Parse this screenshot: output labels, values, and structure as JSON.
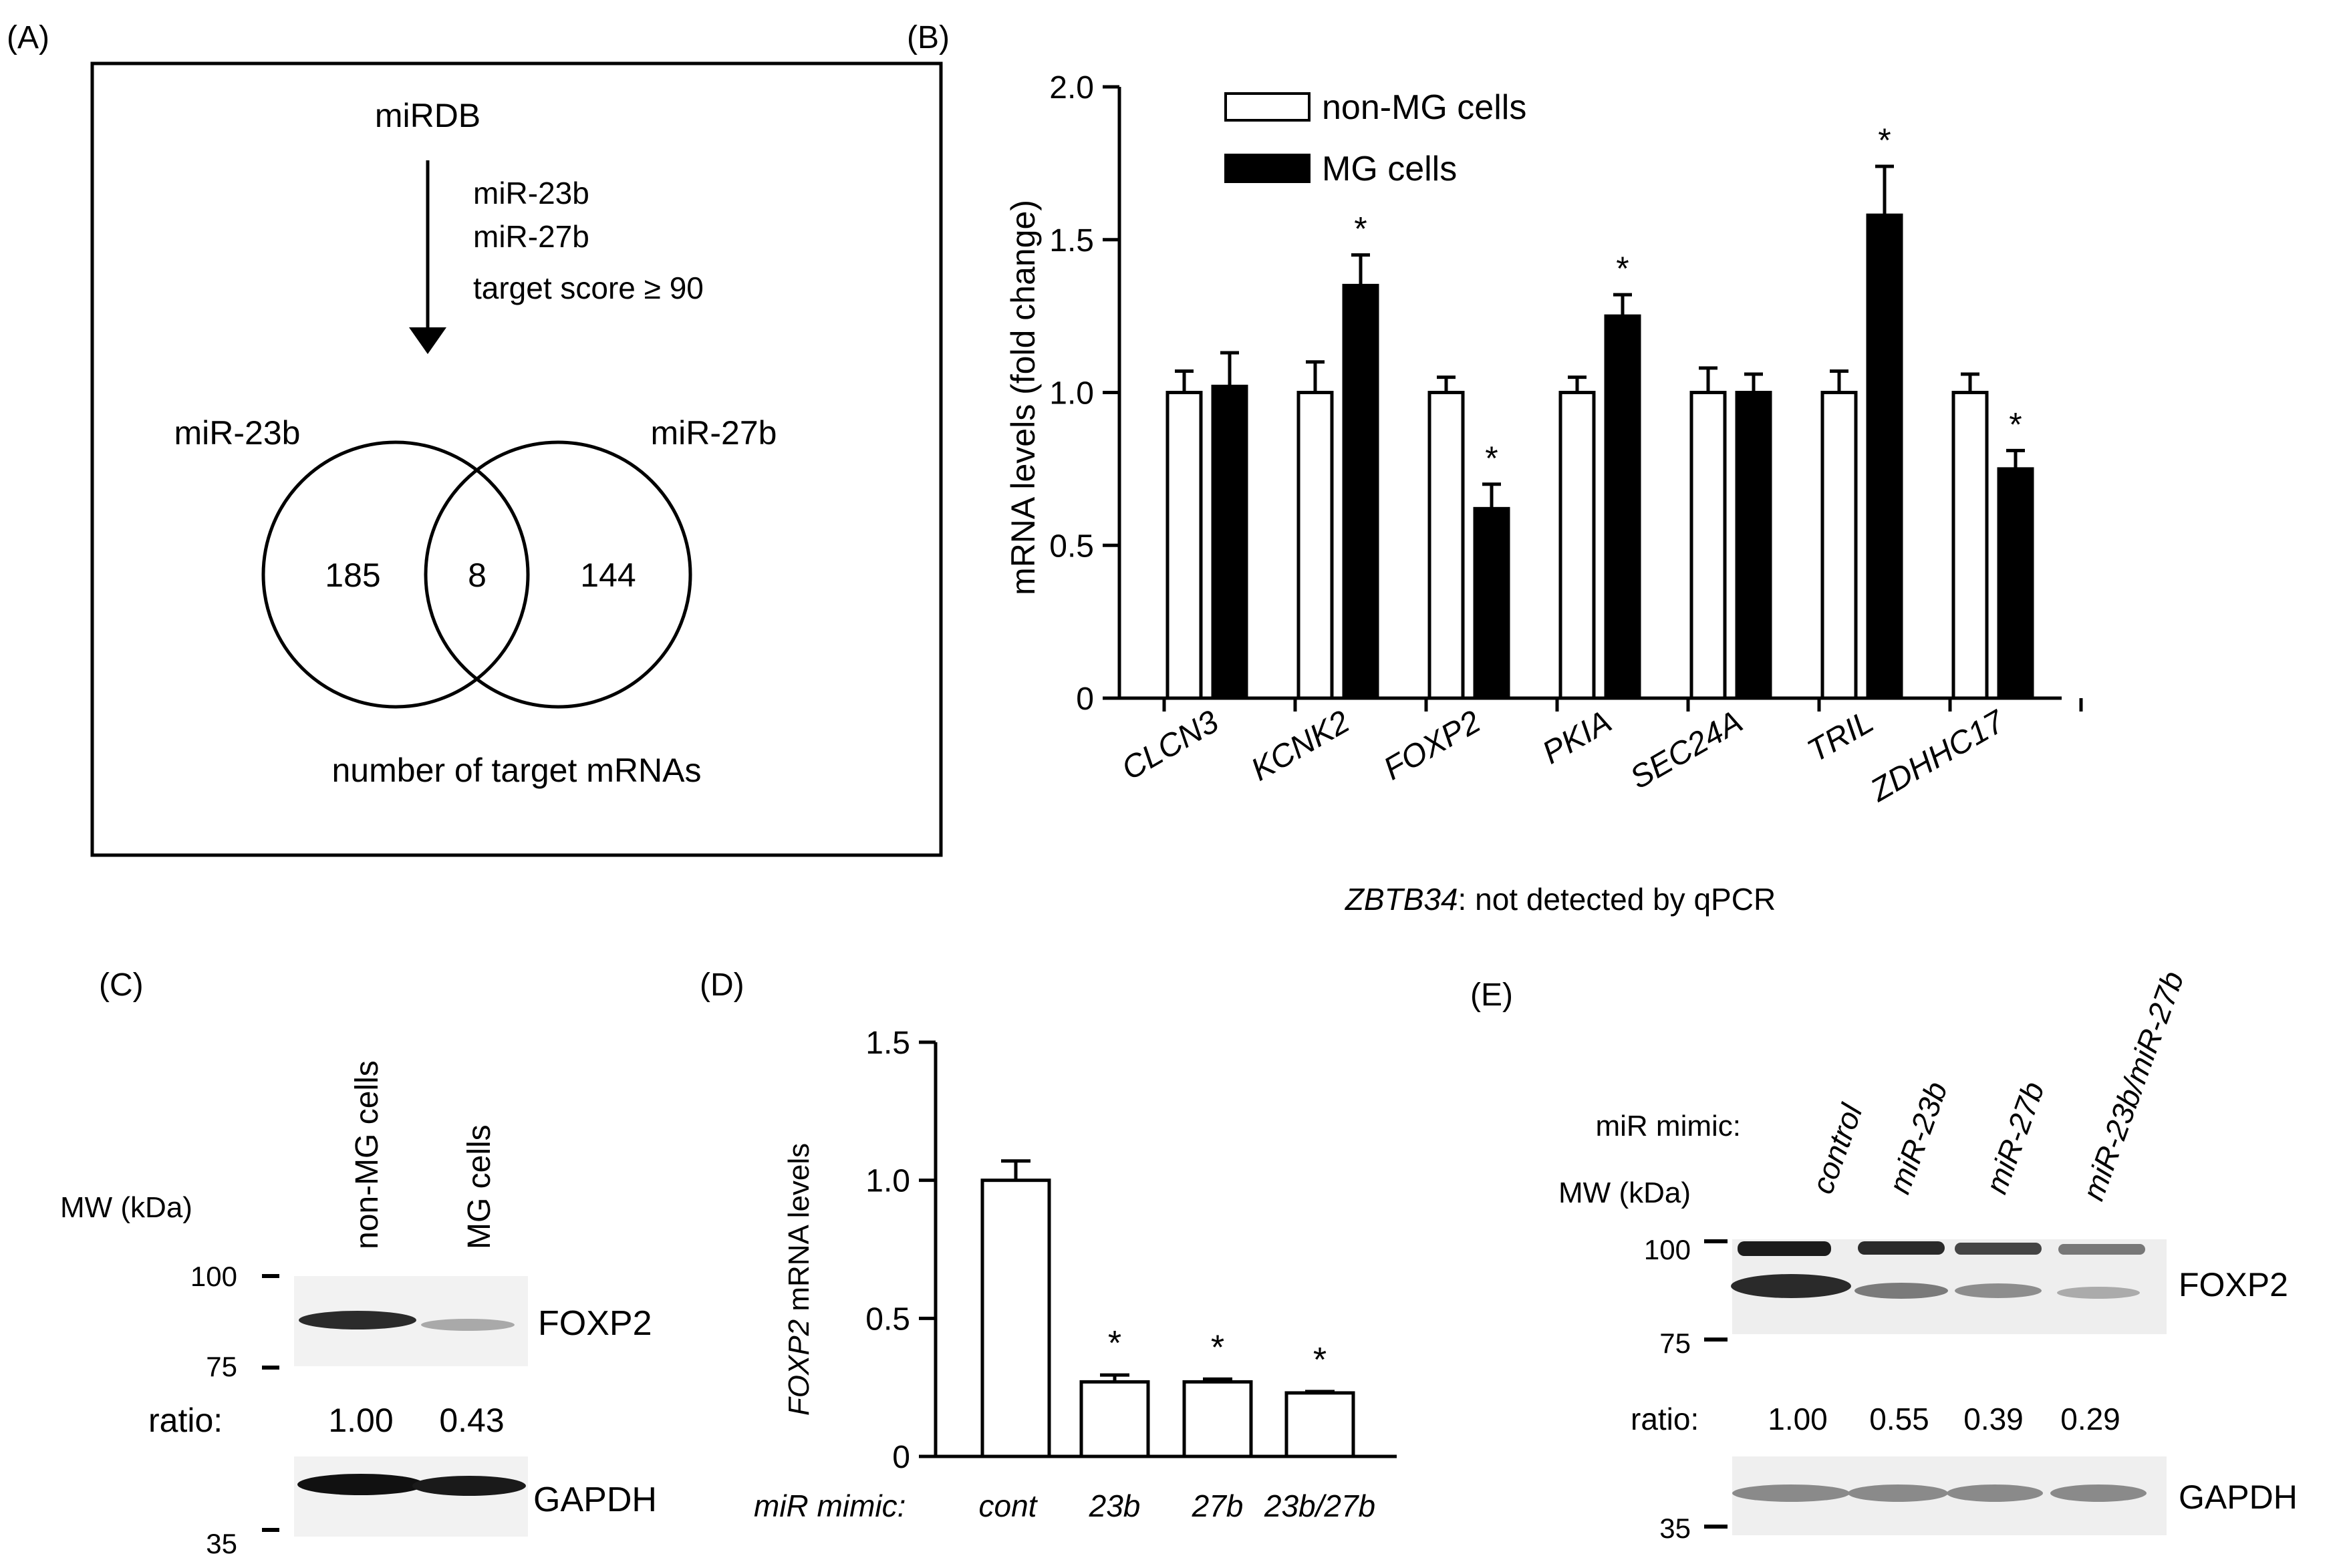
{
  "panel_a": {
    "label": "(A)",
    "source": "miRDB",
    "criteria": [
      "miR-23b",
      "miR-27b",
      "target score ≥ 90"
    ],
    "circle_left_label": "miR-23b",
    "circle_right_label": "miR-27b",
    "count_left": "185",
    "count_overlap": "8",
    "count_right": "144",
    "caption": "number of target mRNAs"
  },
  "panel_b": {
    "label": "(B)",
    "legend": [
      "non-MG cells",
      "MG cells"
    ],
    "footnote_gene": "ZBTB34",
    "footnote_text": ": not detected by qPCR"
  },
  "panel_c": {
    "label": "(C)",
    "lanes": [
      "non-MG cells",
      "MG cells"
    ],
    "mw_label": "MW (kDa)",
    "mw_marks": [
      "100",
      "75",
      "35"
    ],
    "band_top": "FOXP2",
    "band_bottom": "GAPDH",
    "ratio_label": "ratio:",
    "ratios": [
      "1.00",
      "0.43"
    ]
  },
  "panel_d": {
    "label": "(D)",
    "mimic_label": "miR mimic:"
  },
  "panel_e": {
    "label": "(E)",
    "mimic_label": "miR mimic:",
    "lanes": [
      "control",
      "miR-23b",
      "miR-27b",
      "miR-23b/miR-27b"
    ],
    "mw_label": "MW (kDa)",
    "mw_marks": [
      "100",
      "75",
      "35"
    ],
    "band_top": "FOXP2",
    "band_bottom": "GAPDH",
    "ratio_label": "ratio:",
    "ratios": [
      "1.00",
      "0.55",
      "0.39",
      "0.29"
    ]
  },
  "chart_data": [
    {
      "type": "bar",
      "panel": "B",
      "ylabel": "mRNA levels (fold change)",
      "ylim": [
        0,
        2.0
      ],
      "yticks": [
        "0",
        "0.5",
        "1.0",
        "1.5",
        "2.0"
      ],
      "categories": [
        "CLCN3",
        "KCNK2",
        "FOXP2",
        "PKIA",
        "SEC24A",
        "TRIL",
        "ZDHHC17"
      ],
      "series": [
        {
          "name": "non-MG cells",
          "color": "#ffffff",
          "values": [
            1.0,
            1.0,
            1.0,
            1.0,
            1.0,
            1.0,
            1.0
          ],
          "errors": [
            0.07,
            0.1,
            0.05,
            0.05,
            0.08,
            0.07,
            0.06
          ]
        },
        {
          "name": "MG cells",
          "color": "#000000",
          "values": [
            1.02,
            1.35,
            0.62,
            1.25,
            1.0,
            1.58,
            0.75
          ],
          "errors": [
            0.11,
            0.1,
            0.08,
            0.07,
            0.06,
            0.16,
            0.06
          ]
        }
      ],
      "significance": [
        "",
        "*",
        "*",
        "*",
        "",
        "*",
        "*"
      ]
    },
    {
      "type": "bar",
      "panel": "D",
      "ylabel_gene": "FOXP2",
      "ylabel_rest": " mRNA levels",
      "ylim": [
        0,
        1.5
      ],
      "yticks": [
        "0",
        "0.5",
        "1.0",
        "1.5"
      ],
      "categories": [
        "cont",
        "23b",
        "27b",
        "23b/27b"
      ],
      "values": [
        1.0,
        0.27,
        0.27,
        0.23
      ],
      "errors": [
        0.07,
        0.025,
        0.01,
        0.005
      ],
      "significance": [
        "",
        "*",
        "*",
        "*"
      ]
    }
  ]
}
